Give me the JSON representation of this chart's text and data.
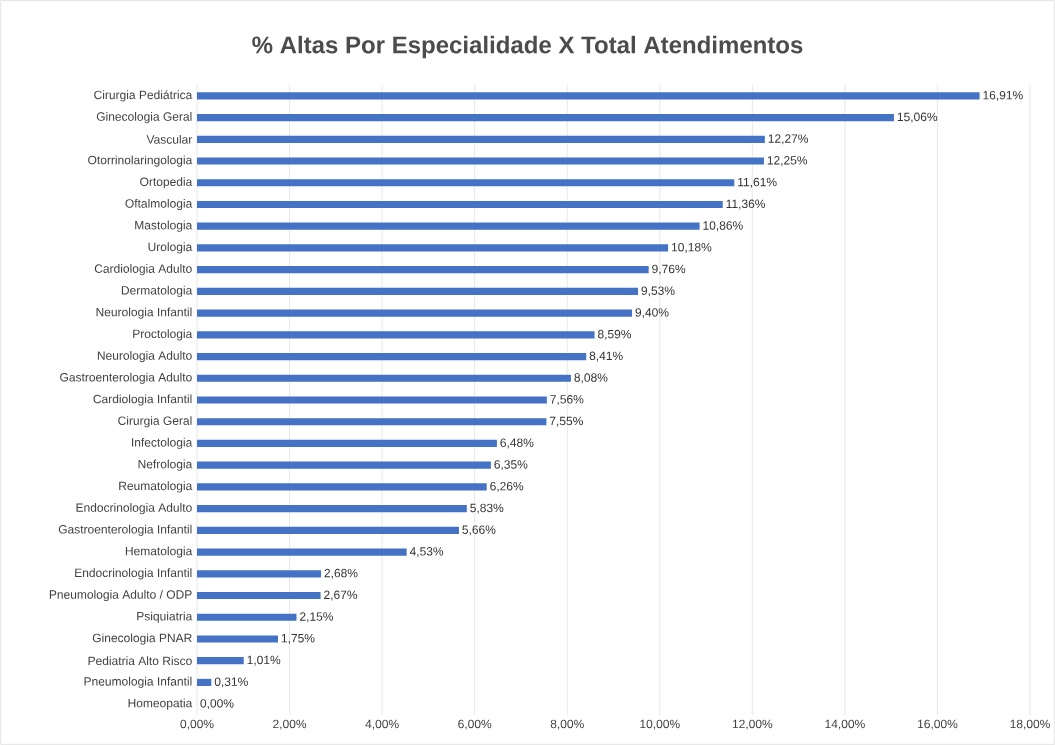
{
  "chart_data": {
    "type": "bar",
    "orientation": "horizontal",
    "title": "% Altas Por Especialidade X Total Atendimentos",
    "categories": [
      "Cirurgia Pediátrica",
      "Ginecologia Geral",
      "Vascular",
      "Otorrinolaringologia",
      "Ortopedia",
      "Oftalmologia",
      "Mastologia",
      "Urologia",
      "Cardiologia Adulto",
      "Dermatologia",
      "Neurologia Infantil",
      "Proctologia",
      "Neurologia Adulto",
      "Gastroenterologia Adulto",
      "Cardiologia Infantil",
      "Cirurgia Geral",
      "Infectologia",
      "Nefrologia",
      "Reumatologia",
      "Endocrinologia Adulto",
      "Gastroenterologia Infantil",
      "Hematologia",
      "Endocrinologia Infantil",
      "Pneumologia Adulto / ODP",
      "Psiquiatria",
      "Ginecologia PNAR",
      "Pediatria Alto Risco",
      "Pneumologia Infantil",
      "Homeopatia"
    ],
    "values": [
      16.91,
      15.06,
      12.27,
      12.25,
      11.61,
      11.36,
      10.86,
      10.18,
      9.76,
      9.53,
      9.4,
      8.59,
      8.41,
      8.08,
      7.56,
      7.55,
      6.48,
      6.35,
      6.26,
      5.83,
      5.66,
      4.53,
      2.68,
      2.67,
      2.15,
      1.75,
      1.01,
      0.31,
      0.0
    ],
    "value_labels": [
      "16,91%",
      "15,06%",
      "12,27%",
      "12,25%",
      "11,61%",
      "11,36%",
      "10,86%",
      "10,18%",
      "9,76%",
      "9,53%",
      "9,40%",
      "8,59%",
      "8,41%",
      "8,08%",
      "7,56%",
      "7,55%",
      "6,48%",
      "6,35%",
      "6,26%",
      "5,83%",
      "5,66%",
      "4,53%",
      "2,68%",
      "2,67%",
      "2,15%",
      "1,75%",
      "1,01%",
      "0,31%",
      "0,00%"
    ],
    "color": "#4472c4",
    "xlim": [
      0,
      18
    ],
    "xticks": [
      {
        "value": 0,
        "label": "0,00%"
      },
      {
        "value": 2,
        "label": "2,00%"
      },
      {
        "value": 4,
        "label": "4,00%"
      },
      {
        "value": 6,
        "label": "6,00%"
      },
      {
        "value": 8,
        "label": "8,00%"
      },
      {
        "value": 10,
        "label": "10,00%"
      },
      {
        "value": 12,
        "label": "12,00%"
      },
      {
        "value": 14,
        "label": "14,00%"
      },
      {
        "value": 16,
        "label": "16,00%"
      },
      {
        "value": 18,
        "label": "18,00%"
      }
    ],
    "grid": "x"
  }
}
